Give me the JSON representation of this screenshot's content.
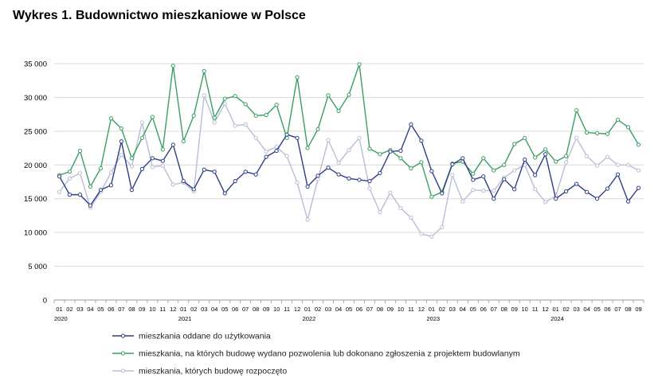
{
  "title": "Wykres 1. Budownictwo mieszkaniowe w Polsce",
  "chart_data": {
    "type": "line",
    "title": "Wykres 1. Budownictwo mieszkaniowe w Polsce",
    "ylim": [
      0,
      35000
    ],
    "y_ticks": [
      "0",
      "5 000",
      "10 000",
      "15 000",
      "20 000",
      "25 000",
      "30 000",
      "35 000"
    ],
    "y_tick_values": [
      0,
      5000,
      10000,
      15000,
      20000,
      25000,
      30000,
      35000
    ],
    "grid": true,
    "legend_position": "bottom",
    "categories": [
      "01",
      "02",
      "03",
      "04",
      "05",
      "06",
      "07",
      "08",
      "09",
      "10",
      "11",
      "12",
      "01",
      "02",
      "03",
      "04",
      "05",
      "06",
      "07",
      "08",
      "09",
      "10",
      "11",
      "12",
      "01",
      "02",
      "03",
      "04",
      "05",
      "06",
      "07",
      "08",
      "09",
      "10",
      "11",
      "12",
      "01",
      "02",
      "03",
      "04",
      "05",
      "06",
      "07",
      "08",
      "09",
      "10",
      "11",
      "12",
      "01",
      "02",
      "03",
      "04",
      "05",
      "06",
      "07",
      "08",
      "09"
    ],
    "years": [
      {
        "label": "2020",
        "index": 0
      },
      {
        "label": "2021",
        "index": 12
      },
      {
        "label": "2022",
        "index": 24
      },
      {
        "label": "2023",
        "index": 36
      },
      {
        "label": "2024",
        "index": 48
      }
    ],
    "series": [
      {
        "name": "mieszkania oddane do użytkowania",
        "color": "#2e3f85",
        "values": [
          18300,
          15600,
          15600,
          14000,
          16300,
          17000,
          23500,
          16300,
          19400,
          21000,
          20600,
          23000,
          17600,
          16400,
          19300,
          19000,
          15800,
          17600,
          19000,
          18600,
          21200,
          22100,
          24500,
          24000,
          16800,
          18400,
          19600,
          18600,
          18000,
          17800,
          17600,
          18800,
          22000,
          22100,
          26000,
          23600,
          19100,
          15800,
          20100,
          21000,
          17800,
          18300,
          15000,
          17900,
          16400,
          20800,
          18500,
          21600,
          15000,
          16100,
          17200,
          16000,
          15000,
          16500,
          18600,
          14600,
          16600
        ]
      },
      {
        "name": "mieszkania, na których budowę wydano pozwolenia lub dokonano zgłoszenia z projektem budowlanym",
        "color": "#3a9e62",
        "values": [
          18500,
          19000,
          22100,
          16800,
          19500,
          26900,
          25400,
          21000,
          24000,
          27100,
          22300,
          34700,
          23500,
          27300,
          33900,
          27000,
          29800,
          30200,
          29000,
          27300,
          27400,
          28900,
          24000,
          33000,
          22500,
          25300,
          30300,
          28000,
          30400,
          34900,
          22400,
          21600,
          22200,
          21000,
          19500,
          20400,
          15300,
          16000,
          20200,
          20500,
          18700,
          21000,
          19200,
          20000,
          23100,
          24000,
          21100,
          22300,
          20500,
          21300,
          28100,
          24800,
          24700,
          24600,
          26700,
          25600,
          23000
        ]
      },
      {
        "name": "mieszkania, których budowę rozpoczęto",
        "color": "#b9bdd7",
        "values": [
          16000,
          18000,
          18800,
          13700,
          16000,
          18900,
          21500,
          19800,
          26300,
          19700,
          19900,
          17100,
          17400,
          16100,
          30300,
          26300,
          29100,
          25800,
          26000,
          24000,
          22000,
          22700,
          21300,
          17400,
          11900,
          17900,
          23700,
          20300,
          22200,
          24000,
          16500,
          13000,
          15900,
          13600,
          12200,
          9800,
          9400,
          10800,
          18500,
          14600,
          16300,
          16200,
          16200,
          18100,
          19200,
          20000,
          16400,
          14500,
          15400,
          20400,
          24000,
          21300,
          19900,
          21200,
          20000,
          20000,
          19200
        ]
      }
    ]
  }
}
